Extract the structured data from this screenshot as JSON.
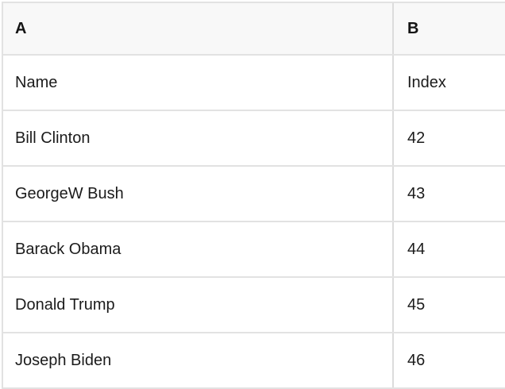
{
  "table": {
    "columns": [
      {
        "header": "A"
      },
      {
        "header": "B"
      }
    ],
    "rows": [
      {
        "a": "Name",
        "b": "Index"
      },
      {
        "a": "Bill Clinton",
        "b": "42"
      },
      {
        "a": "GeorgeW Bush",
        "b": "43"
      },
      {
        "a": "Barack Obama",
        "b": "44"
      },
      {
        "a": "Donald Trump",
        "b": "45"
      },
      {
        "a": "Joseph Biden",
        "b": "46"
      }
    ]
  },
  "colors": {
    "header_bg": "#f8f8f8",
    "grid_border": "#e2e2e2",
    "column_divider": "#dcdcdc",
    "text": "#1b1b1b",
    "background": "#ffffff"
  }
}
